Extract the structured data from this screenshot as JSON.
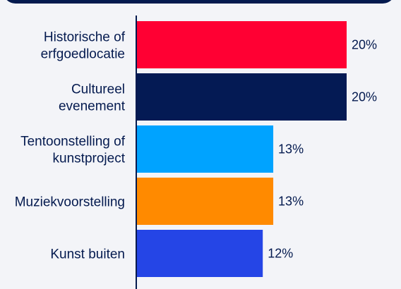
{
  "chart_data": {
    "type": "bar",
    "orientation": "horizontal",
    "categories": [
      [
        "Historische of",
        "erfgoedlocatie"
      ],
      [
        "Cultureel",
        "evenement"
      ],
      [
        "Tentoonstelling of",
        "kunstproject"
      ],
      [
        "Muziekvoorstelling"
      ],
      [
        "Kunst buiten"
      ]
    ],
    "values": [
      20,
      20,
      13,
      13,
      12
    ],
    "value_labels": [
      "20%",
      "20%",
      "13%",
      "13%",
      "12%"
    ],
    "colors": [
      "#ff0033",
      "#041a54",
      "#00a3ff",
      "#ff8a00",
      "#2545e6"
    ],
    "xlim": [
      0,
      20
    ],
    "grid": false,
    "legend": "none"
  }
}
